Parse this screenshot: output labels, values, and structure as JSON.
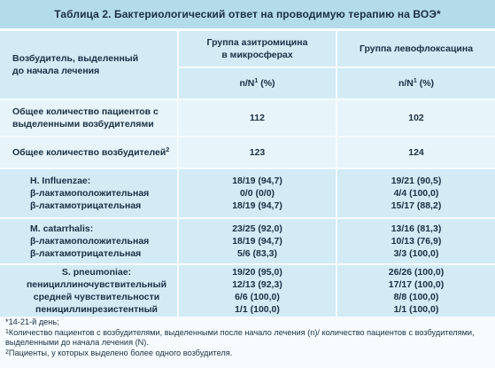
{
  "title": "Таблица 2. Бактериологический ответ на проводимую терапию на ВОЭ*",
  "header": {
    "col1_line1": "Возбудитель, выделенный",
    "col1_line2": "до начала лечения",
    "col2_line1": "Группа азитромицина",
    "col2_line2": "в микросферах",
    "col3": "Группа левофлоксацина",
    "unit_label": "n/N",
    "unit_sup": "1",
    "unit_suffix": " (%)"
  },
  "rows": {
    "total_patients": {
      "label_line1": "Общее количество пациентов с",
      "label_line2": "выделенными возбудителями",
      "azithro": "112",
      "levo": "102"
    },
    "total_pathogens": {
      "label": "Общее количество возбудителей",
      "label_sup": "2",
      "azithro": "123",
      "levo": "124"
    },
    "h_influenzae": {
      "lines": [
        "H. Influenzae:",
        "β-лактамоположительная",
        "β-лактамотрицательная"
      ],
      "azithro": [
        "18/19 (94,7)",
        "0/0 (0/0)",
        "18/19 (94,7)"
      ],
      "levo": [
        "19/21 (90,5)",
        "4/4 (100,0)",
        "15/17 (88,2)"
      ]
    },
    "m_catarrhalis": {
      "lines": [
        "M. catarrhalis:",
        "β-лактамоположительная",
        "β-лактамотрицательная"
      ],
      "azithro": [
        "23/25 (92,0)",
        "18/19 (94,7)",
        "5/6 (83,3)"
      ],
      "levo": [
        "13/16 (81,3)",
        "10/13 (76,9)",
        "3/3 (100,0)"
      ]
    },
    "s_pneumoniae": {
      "lines": [
        "S. pneumoniae:",
        "пенициллиночувствительный",
        "средней чувствительности",
        "пенициллинрезистентный"
      ],
      "azithro": [
        "19/20 (95,0)",
        "12/13 (92,3)",
        "6/6 (100,0)",
        "1/1 (100,0)"
      ],
      "levo": [
        "26/26 (100,0)",
        "17/17 (100,0)",
        "8/8 (100,0)",
        "1/1 (100,0)"
      ]
    }
  },
  "footer": {
    "note1": "*14-21-й день;",
    "note2_sup": "1",
    "note2_a": "Количество пациентов с возбудителями, выделенными после начало лечения (n)/ количество пациентов с возбудителями,",
    "note2_b": "выделенными до начала лечения (N).",
    "note3_sup": "2",
    "note3": "Пациенты, у которых выделено более одного возбудителя."
  },
  "colors": {
    "title_bg": "#b4dbea",
    "header_bg": "#d2ebf5",
    "band_light": "#e7f4f9",
    "text": "#1a2f43"
  }
}
